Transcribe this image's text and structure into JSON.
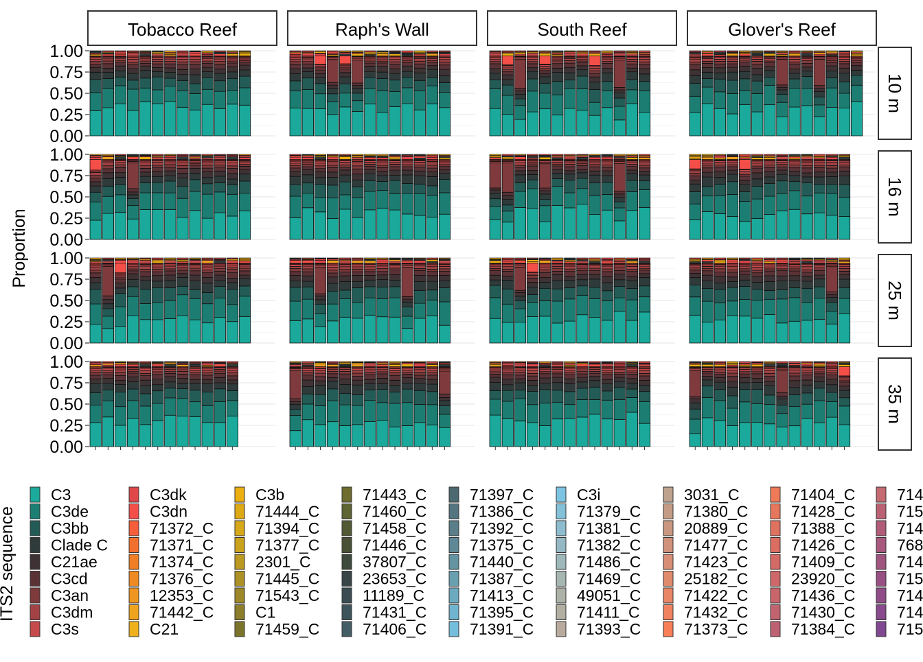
{
  "chart_data": {
    "type": "bar",
    "stacked": true,
    "ylabel": "Proportion",
    "xlabel": "",
    "ylim": [
      0,
      1
    ],
    "yticks": [
      "0.00",
      "0.25",
      "0.50",
      "0.75",
      "1.00"
    ],
    "grid": true,
    "legend_title": "ITS2 sequence",
    "legend_position": "bottom",
    "facet_columns": [
      "Tobacco Reef",
      "Raph's Wall",
      "South Reef",
      "Glover's Reef"
    ],
    "facet_rows": [
      "10 m",
      "16 m",
      "25 m",
      "35 m"
    ],
    "samples_per_panel": [
      [
        13,
        13,
        13,
        14
      ],
      [
        13,
        13,
        13,
        13
      ],
      [
        13,
        13,
        13,
        13
      ],
      [
        12,
        13,
        13,
        13
      ]
    ],
    "c3_share_per_panel": [
      [
        0.38,
        0.37,
        0.33,
        0.36
      ],
      [
        0.32,
        0.33,
        0.42,
        0.31
      ],
      [
        0.3,
        0.3,
        0.32,
        0.31
      ],
      [
        0.33,
        0.3,
        0.33,
        0.31
      ]
    ],
    "component_series": [
      "C3",
      "C3de",
      "C3bb",
      "Clade C",
      "C21ae",
      "C3cd",
      "C3an",
      "C3dm",
      "C3s",
      "C3dk",
      "C3dn"
    ],
    "typical_profile_shares": [
      0.33,
      0.23,
      0.14,
      0.09,
      0.06,
      0.05,
      0.03,
      0.03,
      0.02,
      0.01,
      0.01
    ],
    "legend": [
      {
        "name": "C3",
        "color": "#1AA99A"
      },
      {
        "name": "C3de",
        "color": "#1C7E72"
      },
      {
        "name": "C3bb",
        "color": "#235C57"
      },
      {
        "name": "Clade C",
        "color": "#2F3B3A"
      },
      {
        "name": "C21ae",
        "color": "#3E3234"
      },
      {
        "name": "C3cd",
        "color": "#5A3236"
      },
      {
        "name": "C3an",
        "color": "#7E3A3C"
      },
      {
        "name": "C3dm",
        "color": "#A34244"
      },
      {
        "name": "C3s",
        "color": "#C64A4C"
      },
      {
        "name": "C3dk",
        "color": "#E0474B"
      },
      {
        "name": "C3dn",
        "color": "#F44E48"
      },
      {
        "name": "71372_C",
        "color": "#F45E3A"
      },
      {
        "name": "71371_C",
        "color": "#F2702E"
      },
      {
        "name": "71374_C",
        "color": "#EF7E26"
      },
      {
        "name": "71376_C",
        "color": "#EE8A22"
      },
      {
        "name": "12353_C",
        "color": "#EE9620"
      },
      {
        "name": "71442_C",
        "color": "#EEA31E"
      },
      {
        "name": "C21",
        "color": "#EEB11C"
      },
      {
        "name": "C3b",
        "color": "#ECAF12"
      },
      {
        "name": "71444_C",
        "color": "#DDAA16"
      },
      {
        "name": "71394_C",
        "color": "#D6A81A"
      },
      {
        "name": "71377_C",
        "color": "#CBA21E"
      },
      {
        "name": "2301_C",
        "color": "#BC9A22"
      },
      {
        "name": "71445_C",
        "color": "#AC9226"
      },
      {
        "name": "71543_C",
        "color": "#9C8828"
      },
      {
        "name": "C1",
        "color": "#8C7E2A"
      },
      {
        "name": "71459_C",
        "color": "#7C742C"
      },
      {
        "name": "71443_C",
        "color": "#6E6C2E"
      },
      {
        "name": "71460_C",
        "color": "#5E6432"
      },
      {
        "name": "71458_C",
        "color": "#525A34"
      },
      {
        "name": "71446_C",
        "color": "#485036"
      },
      {
        "name": "37807_C",
        "color": "#3F4A3E"
      },
      {
        "name": "23653_C",
        "color": "#394648"
      },
      {
        "name": "11189_C",
        "color": "#3A4C52"
      },
      {
        "name": "71431_C",
        "color": "#3E545C"
      },
      {
        "name": "71406_C",
        "color": "#445E66"
      },
      {
        "name": "71397_C",
        "color": "#4C6870"
      },
      {
        "name": "71386_C",
        "color": "#547480"
      },
      {
        "name": "71392_C",
        "color": "#5A7E8A"
      },
      {
        "name": "71375_C",
        "color": "#5E8896"
      },
      {
        "name": "71440_C",
        "color": "#6494A2"
      },
      {
        "name": "71387_C",
        "color": "#68A0B0"
      },
      {
        "name": "71413_C",
        "color": "#6CAAC0"
      },
      {
        "name": "71395_C",
        "color": "#70B4CE"
      },
      {
        "name": "71391_C",
        "color": "#74BEDC"
      },
      {
        "name": "C3i",
        "color": "#7CC4E2"
      },
      {
        "name": "71379_C",
        "color": "#84C0D8"
      },
      {
        "name": "71381_C",
        "color": "#8CBCCE"
      },
      {
        "name": "71382_C",
        "color": "#96B8C4"
      },
      {
        "name": "71486_C",
        "color": "#9EB8BA"
      },
      {
        "name": "71469_C",
        "color": "#A6B6B0"
      },
      {
        "name": "49051_C",
        "color": "#ACB2A8"
      },
      {
        "name": "71411_C",
        "color": "#B2AEA2"
      },
      {
        "name": "71393_C",
        "color": "#B8AA9E"
      },
      {
        "name": "3031_C",
        "color": "#BEA28E"
      },
      {
        "name": "71380_C",
        "color": "#C49C86"
      },
      {
        "name": "20889_C",
        "color": "#CA9880"
      },
      {
        "name": "71477_C",
        "color": "#D0927A"
      },
      {
        "name": "71423_C",
        "color": "#D88E74"
      },
      {
        "name": "25182_C",
        "color": "#E08A6C"
      },
      {
        "name": "71422_C",
        "color": "#E88666"
      },
      {
        "name": "71432_C",
        "color": "#F08260"
      },
      {
        "name": "71373_C",
        "color": "#F87E58"
      },
      {
        "name": "71404_C",
        "color": "#EE7A58"
      },
      {
        "name": "71428_C",
        "color": "#E6765C"
      },
      {
        "name": "71388_C",
        "color": "#E07260"
      },
      {
        "name": "71426_C",
        "color": "#DA6E62"
      },
      {
        "name": "71409_C",
        "color": "#D46A66"
      },
      {
        "name": "23920_C",
        "color": "#CE686A"
      },
      {
        "name": "71436_C",
        "color": "#C8666C"
      },
      {
        "name": "71430_C",
        "color": "#C26470"
      },
      {
        "name": "71384_C",
        "color": "#BC6272"
      },
      {
        "name": "714",
        "color": "#C46A72"
      },
      {
        "name": "715",
        "color": "#BA6274"
      },
      {
        "name": "714",
        "color": "#B05C78"
      },
      {
        "name": "768",
        "color": "#A8587C"
      },
      {
        "name": "714",
        "color": "#A05480"
      },
      {
        "name": "715",
        "color": "#985084"
      },
      {
        "name": "714",
        "color": "#904C88"
      },
      {
        "name": "714",
        "color": "#884A8C"
      },
      {
        "name": "715",
        "color": "#804890"
      }
    ]
  }
}
